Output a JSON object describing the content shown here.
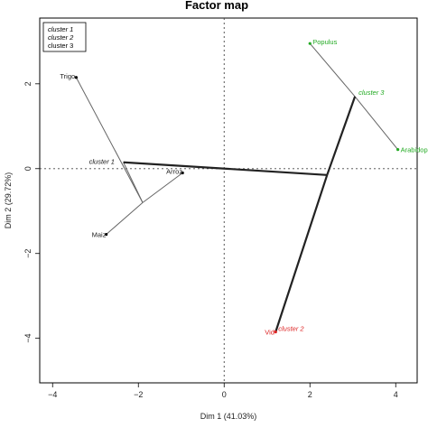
{
  "chart_data": {
    "type": "scatter",
    "title": "Factor map",
    "xlabel": "Dim 1 (41.03%)",
    "ylabel": "Dim 2 (29.72%)",
    "xlim": [
      -4.3,
      4.5
    ],
    "ylim": [
      -5.05,
      3.55
    ],
    "xticks": [
      -4,
      -2,
      0,
      2,
      4
    ],
    "yticks": [
      2,
      0,
      -2,
      -4
    ],
    "reference_lines": {
      "x": 0,
      "y": 0,
      "style": "dotted"
    },
    "grid": false,
    "legend": {
      "placement": "top-left",
      "entries": [
        {
          "label": "cluster 1",
          "color": "#000000"
        },
        {
          "label": "cluster 2",
          "color": "#dd2222"
        },
        {
          "label": "cluster 3",
          "color": "#22aa22"
        }
      ]
    },
    "individuals": [
      {
        "label": "Trigo",
        "x": -3.45,
        "y": 2.15,
        "cluster": 1
      },
      {
        "label": "Arroz",
        "x": -0.97,
        "y": -0.1,
        "cluster": 1
      },
      {
        "label": "Maiz",
        "x": -2.75,
        "y": -1.55,
        "cluster": 1
      },
      {
        "label": "Vid",
        "x": 1.2,
        "y": -3.85,
        "cluster": 2
      },
      {
        "label": "Populus",
        "x": 2.0,
        "y": 2.95,
        "cluster": 3
      },
      {
        "label": "Arabidopsis",
        "x": 4.05,
        "y": 0.45,
        "cluster": 3
      }
    ],
    "cluster_centers": [
      {
        "label": "cluster 1",
        "x": -2.35,
        "y": 0.15,
        "cluster": 1
      },
      {
        "label": "cluster 2",
        "x": 1.2,
        "y": -3.85,
        "cluster": 2
      },
      {
        "label": "cluster 3",
        "x": 3.05,
        "y": 1.7,
        "cluster": 3
      }
    ],
    "tree_nodes": [
      {
        "id": "n_maiz_arroz",
        "x": -1.9,
        "y": -0.8
      },
      {
        "id": "n_cluster1",
        "x": -2.35,
        "y": 0.15
      },
      {
        "id": "n_cluster3",
        "x": 3.05,
        "y": 1.7
      },
      {
        "id": "n_root",
        "x": 2.4,
        "y": -0.15
      }
    ],
    "tree_edges": [
      {
        "from": [
          -2.75,
          -1.55
        ],
        "to": [
          -1.9,
          -0.8
        ],
        "weight": "thin"
      },
      {
        "from": [
          -0.97,
          -0.1
        ],
        "to": [
          -1.9,
          -0.8
        ],
        "weight": "thin"
      },
      {
        "from": [
          -3.45,
          2.15
        ],
        "to": [
          -1.9,
          -0.8
        ],
        "weight": "thin"
      },
      {
        "from": [
          -1.9,
          -0.8
        ],
        "to": [
          -2.35,
          0.15
        ],
        "weight": "thin"
      },
      {
        "from": [
          2.0,
          2.95
        ],
        "to": [
          3.05,
          1.7
        ],
        "weight": "thin"
      },
      {
        "from": [
          4.05,
          0.45
        ],
        "to": [
          3.05,
          1.7
        ],
        "weight": "thin"
      },
      {
        "from": [
          -2.35,
          0.15
        ],
        "to": [
          2.4,
          -0.15
        ],
        "weight": "thick"
      },
      {
        "from": [
          3.05,
          1.7
        ],
        "to": [
          2.4,
          -0.15
        ],
        "weight": "thick"
      },
      {
        "from": [
          1.2,
          -3.85
        ],
        "to": [
          2.4,
          -0.15
        ],
        "weight": "thick"
      }
    ]
  }
}
